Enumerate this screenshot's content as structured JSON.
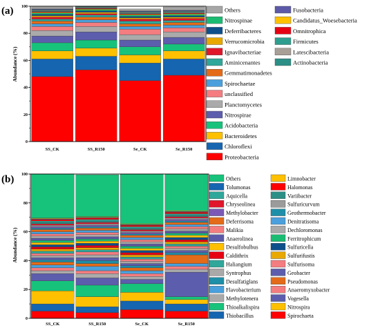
{
  "chart_data": [
    {
      "panel": "(a)",
      "type": "bar",
      "stacked": true,
      "ylabel": "Abundance (%)",
      "ylim": [
        0,
        100
      ],
      "yticks": [
        0,
        20,
        40,
        60,
        80,
        100
      ],
      "categories": [
        "SS_CK",
        "SS_R150",
        "Se_CK",
        "Se_R150"
      ],
      "grid": false,
      "legend_placement": "right, two columns",
      "series": [
        {
          "name": "Proteobacteria",
          "color": "#ff0000",
          "values": [
            48,
            53,
            45,
            49
          ]
        },
        {
          "name": "Chloroflexi",
          "color": "#1565b0",
          "values": [
            13,
            10,
            13,
            12
          ]
        },
        {
          "name": "Bacteroidetes",
          "color": "#ffc000",
          "values": [
            6,
            6,
            6,
            6
          ]
        },
        {
          "name": "Acidobacteria",
          "color": "#17c37b",
          "values": [
            6,
            6,
            6,
            5
          ]
        },
        {
          "name": "Nitrospirae",
          "color": "#5d5dad",
          "values": [
            5,
            6,
            5,
            5
          ]
        },
        {
          "name": "Planctomycetes",
          "color": "#aaaaaa",
          "values": [
            4,
            4,
            4,
            4
          ]
        },
        {
          "name": "unclassified",
          "color": "#f47d80",
          "values": [
            3,
            3,
            4,
            3
          ]
        },
        {
          "name": "Spirochaetae",
          "color": "#4aa0dc",
          "values": [
            2,
            2,
            2,
            2
          ]
        },
        {
          "name": "Gemmatimonadetes",
          "color": "#e46b19",
          "values": [
            2,
            2,
            2,
            2
          ]
        },
        {
          "name": "Aminicenantes",
          "color": "#2fa79a",
          "values": [
            1.5,
            1.5,
            2,
            1.5
          ]
        },
        {
          "name": "Ignavibacteriae",
          "color": "#e0162b",
          "values": [
            1.5,
            1,
            1.5,
            1.5
          ]
        },
        {
          "name": "Verrucomicrobia",
          "color": "#e9a800",
          "values": [
            1,
            1,
            1,
            1
          ]
        },
        {
          "name": "Deferribacteres",
          "color": "#0d4f8b",
          "values": [
            1,
            1,
            1,
            1
          ]
        },
        {
          "name": "Nitrospinae",
          "color": "#1abc72",
          "values": [
            1,
            1,
            1,
            1
          ]
        },
        {
          "name": "Candidatus_Woesebacteria",
          "color": "#ffc000",
          "values": [
            0.5,
            0.5,
            0.5,
            0.5
          ]
        },
        {
          "name": "Omnitrophica",
          "color": "#e60012",
          "values": [
            0.5,
            0.5,
            0.5,
            0.5
          ]
        },
        {
          "name": "Firmicutes",
          "color": "#2e9e8f",
          "values": [
            0.5,
            0.5,
            0.5,
            0.5
          ]
        },
        {
          "name": "Latescibacteria",
          "color": "#a89f96",
          "values": [
            0.5,
            0.5,
            0.5,
            0.5
          ]
        },
        {
          "name": "Actinobacteria",
          "color": "#2b8f86",
          "values": [
            0.5,
            0.5,
            0.5,
            0.5
          ]
        },
        {
          "name": "Fusobacteria",
          "color": "#5c5aa8",
          "values": [
            0.5,
            0.5,
            0.5,
            0.5
          ]
        },
        {
          "name": "Others",
          "color": "#a6a6a6",
          "values": [
            1.5,
            1.5,
            1.5,
            2.5
          ]
        }
      ],
      "legend_columns": [
        [
          "Others",
          "Nitrospinae",
          "Deferribacteres",
          "Verrucomicrobia",
          "Ignavibacteriae",
          "Aminicenantes",
          "Gemmatimonadetes",
          "Spirochaetae",
          "unclassified",
          "Planctomycetes",
          "Nitrospirae",
          "Acidobacteria",
          "Bacteroidetes",
          "Chloroflexi",
          "Proteobacteria"
        ],
        [
          "Fusobacteria",
          "Candidatus_Woesebacteria",
          "Omnitrophica",
          "Firmicutes",
          "Latescibacteria",
          "Actinobacteria"
        ]
      ]
    },
    {
      "panel": "(b)",
      "type": "bar",
      "stacked": true,
      "ylabel": "Abundance (%)",
      "ylim": [
        0,
        100
      ],
      "yticks": [
        0,
        20,
        40,
        60,
        80,
        100
      ],
      "categories": [
        "SS_CK",
        "SS_R150",
        "Se_CK",
        "Se_R150"
      ],
      "grid": false,
      "legend_placement": "right, two columns",
      "series": [
        {
          "name": "Spirochaeta",
          "color": "#ff0000",
          "values": [
            5,
            4,
            6,
            5
          ]
        },
        {
          "name": "Thiobacillus",
          "color": "#1565b0",
          "values": [
            5,
            4,
            6,
            5
          ]
        },
        {
          "name": "Nitrospira",
          "color": "#ffc000",
          "values": [
            9,
            7,
            6,
            3
          ]
        },
        {
          "name": "Thioalkalispira",
          "color": "#17c37b",
          "values": [
            7,
            8,
            6,
            2
          ]
        },
        {
          "name": "Vogesella",
          "color": "#5d5dad",
          "values": [
            5,
            5,
            3,
            17
          ]
        },
        {
          "name": "Methylotenera",
          "color": "#aaaaaa",
          "values": [
            2,
            3,
            2,
            2
          ]
        },
        {
          "name": "Anaeromyxobacter",
          "color": "#f47d80",
          "values": [
            2,
            2,
            2,
            2
          ]
        },
        {
          "name": "Flavobacterium",
          "color": "#4aa0dc",
          "values": [
            2,
            3,
            2,
            2
          ]
        },
        {
          "name": "Pseudomonas",
          "color": "#e46b19",
          "values": [
            2,
            2,
            2,
            6
          ]
        },
        {
          "name": "Desulfatiglans",
          "color": "#1e8fa8",
          "values": [
            1.5,
            2,
            1.5,
            1.5
          ]
        },
        {
          "name": "Geobacter",
          "color": "#5d5dad",
          "values": [
            1.5,
            2,
            1.5,
            1.5
          ]
        },
        {
          "name": "Syntrophus",
          "color": "#a9a9a9",
          "values": [
            1.5,
            2,
            1.5,
            1.5
          ]
        },
        {
          "name": "Sulfurisoma",
          "color": "#f47d80",
          "values": [
            1.5,
            2,
            1.5,
            1.5
          ]
        },
        {
          "name": "Haliangium",
          "color": "#2fa79a",
          "values": [
            1.5,
            1.5,
            1.5,
            1.5
          ]
        },
        {
          "name": "Sulfurifustis",
          "color": "#e9a800",
          "values": [
            1.5,
            1.5,
            1.5,
            1.5
          ]
        },
        {
          "name": "Caldithrix",
          "color": "#e60012",
          "values": [
            1.5,
            1.5,
            1.5,
            1.5
          ]
        },
        {
          "name": "Sulfuricella",
          "color": "#0d4f8b",
          "values": [
            1.5,
            1.5,
            1.5,
            1.5
          ]
        },
        {
          "name": "Desulfobulbus",
          "color": "#ffc000",
          "values": [
            1.5,
            1.5,
            1.5,
            1.5
          ]
        },
        {
          "name": "Ferritrophicum",
          "color": "#1abc72",
          "values": [
            1.5,
            1.5,
            1.5,
            1.5
          ]
        },
        {
          "name": "Anaerolinea",
          "color": "#5c5aa8",
          "values": [
            1.5,
            1.5,
            1.5,
            1.5
          ]
        },
        {
          "name": "Dechloromonas",
          "color": "#aaaaaa",
          "values": [
            1.5,
            1.5,
            1.5,
            1.5
          ]
        },
        {
          "name": "Malikia",
          "color": "#f47d80",
          "values": [
            1.5,
            1.5,
            1.5,
            1.5
          ]
        },
        {
          "name": "Denitratisoma",
          "color": "#4aa0dc",
          "values": [
            1.5,
            1.5,
            1.5,
            1.5
          ]
        },
        {
          "name": "Deferrisoma",
          "color": "#e46b19",
          "values": [
            1.5,
            1.5,
            1.5,
            1.5
          ]
        },
        {
          "name": "Geothermobacter",
          "color": "#1e8fa8",
          "values": [
            1,
            1,
            1,
            1
          ]
        },
        {
          "name": "Methylobacter",
          "color": "#7c59b6",
          "values": [
            1,
            1,
            1,
            1
          ]
        },
        {
          "name": "Sulfuricurvum",
          "color": "#9b9b9b",
          "values": [
            1,
            1,
            1,
            1
          ]
        },
        {
          "name": "Chryseolinea",
          "color": "#e0162b",
          "values": [
            1,
            1,
            1,
            1
          ]
        },
        {
          "name": "Variibacter",
          "color": "#2b8f86",
          "values": [
            1,
            1,
            1,
            1
          ]
        },
        {
          "name": "Aquicella",
          "color": "#2fa79a",
          "values": [
            1,
            1,
            1,
            1
          ]
        },
        {
          "name": "Halomonas",
          "color": "#ff0000",
          "values": [
            1,
            1,
            1,
            1
          ]
        },
        {
          "name": "Tolumonas",
          "color": "#1565b0",
          "values": [
            0.5,
            0.5,
            0.5,
            0.5
          ]
        },
        {
          "name": "Limnobacter",
          "color": "#ffc000",
          "values": [
            0.5,
            0.5,
            0.5,
            0.5
          ]
        },
        {
          "name": "Others",
          "color": "#17c37b",
          "values": [
            32,
            29,
            36,
            28
          ]
        }
      ],
      "legend_columns": [
        [
          "Others",
          "Tolumonas",
          "Aquicella",
          "Chryseolinea",
          "Methylobacter",
          "Deferrisoma",
          "Malikia",
          "Anaerolinea",
          "Desulfobulbus",
          "Caldithrix",
          "Haliangium",
          "Syntrophus",
          "Desulfatiglans",
          "Flavobacterium",
          "Methylotenera",
          "Thioalkalispira",
          "Thiobacillus"
        ],
        [
          "Limnobacter",
          "Halomonas",
          "Variibacter",
          "Sulfuricurvum",
          "Geothermobacter",
          "Denitratisoma",
          "Dechloromonas",
          "Ferritrophicum",
          "Sulfuricella",
          "Sulfurifustis",
          "Sulfurisoma",
          "Geobacter",
          "Pseudomonas",
          "Anaeromyxobacter",
          "Vogesella",
          "Nitrospira",
          "Spirochaeta"
        ]
      ]
    }
  ]
}
